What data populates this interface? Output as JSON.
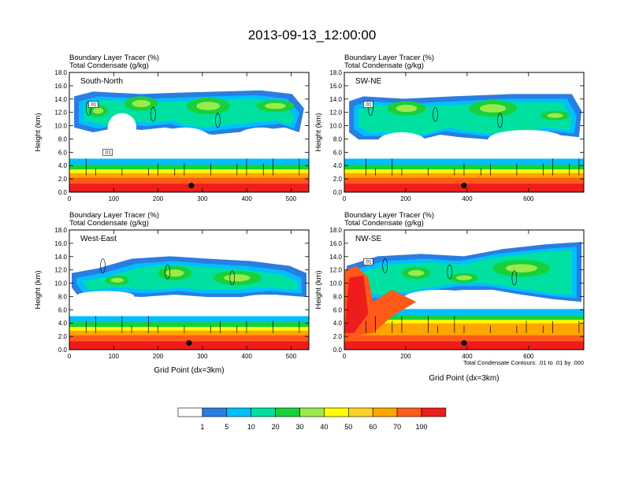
{
  "title": "2013-09-13_12:00:00",
  "colors": {
    "levels": [
      "#ffffff",
      "#2a7de1",
      "#00bfff",
      "#00e0a0",
      "#19d03a",
      "#9bea4c",
      "#ffff00",
      "#ffd21f",
      "#ffa500",
      "#ff5a1a",
      "#ee1c1c"
    ],
    "contour": "#000000"
  },
  "chart_data": [
    {
      "type": "heatmap",
      "label": "South-North",
      "title_line1": "Boundary Layer Tracer    (%)",
      "title_line2": "Total Condensate    (g/kg)",
      "ylabel": "Height (km)",
      "xlabel": "",
      "xlim": [
        0,
        540
      ],
      "ylim": [
        0,
        18
      ],
      "xticks": [
        "0",
        "100",
        "200",
        "300",
        "400",
        "500"
      ],
      "xtick_values": [
        0,
        100,
        200,
        300,
        400,
        500
      ],
      "yticks": [
        "0.0",
        "2.0",
        "4.0",
        "6.0",
        "8.0",
        "10.0",
        "12.0",
        "14.0",
        "16.0",
        "18.0"
      ],
      "marker_x": 275,
      "marker_y": 1.0,
      "box_labels": [
        ".01",
        ".01"
      ]
    },
    {
      "type": "heatmap",
      "label": "SW-NE",
      "title_line1": "Boundary Layer Tracer    (%)",
      "title_line2": "Total Condensate    (g/kg)",
      "ylabel": "Height (km)",
      "xlabel": "",
      "xlim": [
        0,
        780
      ],
      "ylim": [
        0,
        18
      ],
      "xticks": [
        "0",
        "200",
        "400",
        "600"
      ],
      "xtick_values": [
        0,
        200,
        400,
        600
      ],
      "yticks": [
        "0.0",
        "2.0",
        "4.0",
        "6.0",
        "8.0",
        "10.0",
        "12.0",
        "14.0",
        "16.0",
        "18.0"
      ],
      "marker_x": 390,
      "marker_y": 1.0,
      "box_labels": [
        ".01"
      ]
    },
    {
      "type": "heatmap",
      "label": "West-East",
      "title_line1": "Boundary Layer Tracer    (%)",
      "title_line2": "Total Condensate    (g/kg)",
      "ylabel": "Height (km)",
      "xlabel": "Grid Point (dx=3km)",
      "xlim": [
        0,
        540
      ],
      "ylim": [
        0,
        18
      ],
      "xticks": [
        "0",
        "100",
        "200",
        "300",
        "400",
        "500"
      ],
      "xtick_values": [
        0,
        100,
        200,
        300,
        400,
        500
      ],
      "yticks": [
        "0.0",
        "2.0",
        "4.0",
        "6.0",
        "8.0",
        "10.0",
        "12.0",
        "14.0",
        "16.0",
        "18.0"
      ],
      "marker_x": 270,
      "marker_y": 1.0,
      "box_labels": []
    },
    {
      "type": "heatmap",
      "label": "NW-SE",
      "title_line1": "Boundary Layer Tracer    (%)",
      "title_line2": "Total Condensate    (g/kg)",
      "ylabel": "Height (km)",
      "xlabel": "Grid Point (dx=3km)",
      "xlim": [
        0,
        780
      ],
      "ylim": [
        0,
        18
      ],
      "xticks": [
        "0",
        "200",
        "400",
        "600"
      ],
      "xtick_values": [
        0,
        200,
        400,
        600
      ],
      "yticks": [
        "0.0",
        "2.0",
        "4.0",
        "6.0",
        "8.0",
        "10.0",
        "12.0",
        "14.0",
        "16.0",
        "18.0"
      ],
      "marker_x": 390,
      "marker_y": 1.0,
      "box_labels": [
        ".01"
      ],
      "contour_note": "Total Condensate Contours: .01 to .01 by .000"
    }
  ],
  "colorbar": {
    "labels": [
      "1",
      "5",
      "10",
      "20",
      "30",
      "40",
      "50",
      "60",
      "70",
      "100"
    ]
  }
}
